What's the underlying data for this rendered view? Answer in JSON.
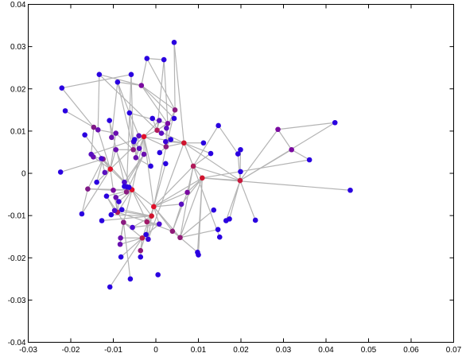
{
  "chart_data": {
    "type": "scatter",
    "title": "",
    "xlabel": "",
    "ylabel": "",
    "xlim": [
      -0.03,
      0.07
    ],
    "ylim": [
      -0.04,
      0.04
    ],
    "xticks": [
      -0.03,
      -0.02,
      -0.01,
      0,
      0.01,
      0.02,
      0.03,
      0.04,
      0.05,
      0.06,
      0.07
    ],
    "yticks": [
      -0.04,
      -0.03,
      -0.02,
      -0.01,
      0,
      0.01,
      0.02,
      0.03,
      0.04
    ],
    "xtick_labels": [
      "-0.03",
      "-0.02",
      "-0.01",
      "0",
      "0.01",
      "0.02",
      "0.03",
      "0.04",
      "0.05",
      "0.06",
      "0.07"
    ],
    "ytick_labels": [
      "-0.04",
      "-0.03",
      "-0.02",
      "-0.01",
      "0",
      "0.01",
      "0.02",
      "0.03",
      "0.04"
    ],
    "grid": false,
    "edge_color": "#b4b4b4",
    "node_colors": {
      "low": "#2a00e0",
      "mid": "#7a0aa0",
      "high": "#e0102a"
    },
    "nodes": [
      {
        "x": -0.0005,
        "y": -0.0079,
        "c": "#e0102a"
      },
      {
        "x": -0.0056,
        "y": -0.0039,
        "c": "#e0102a"
      },
      {
        "x": -0.0107,
        "y": 0.001,
        "c": "#e0102a"
      },
      {
        "x": -0.0028,
        "y": 0.0087,
        "c": "#e0102a"
      },
      {
        "x": 0.0066,
        "y": 0.0072,
        "c": "#d0142e"
      },
      {
        "x": 0.0109,
        "y": -0.0011,
        "c": "#d0142e"
      },
      {
        "x": 0.0198,
        "y": -0.0017,
        "c": "#c8183c"
      },
      {
        "x": -0.001,
        "y": -0.0101,
        "c": "#d0142e"
      },
      {
        "x": -0.0032,
        "y": -0.0153,
        "c": "#b81c50"
      },
      {
        "x": 0.0088,
        "y": 0.0017,
        "c": "#b01a5a"
      },
      {
        "x": 0.0003,
        "y": 0.0102,
        "c": "#b01a5a"
      },
      {
        "x": -0.009,
        "y": -0.0092,
        "c": "#b01a5a"
      },
      {
        "x": -0.0021,
        "y": -0.0115,
        "c": "#a01a68"
      },
      {
        "x": 0.0057,
        "y": -0.0152,
        "c": "#901a78"
      },
      {
        "x": 0.0039,
        "y": -0.0137,
        "c": "#901a78"
      },
      {
        "x": -0.0036,
        "y": -0.0183,
        "c": "#901a78"
      },
      {
        "x": -0.0076,
        "y": -0.0116,
        "c": "#8a1a80"
      },
      {
        "x": -0.0069,
        "y": -0.0044,
        "c": "#8a1a80"
      },
      {
        "x": -0.0053,
        "y": 0.0056,
        "c": "#8a1a80"
      },
      {
        "x": 0.0024,
        "y": 0.0063,
        "c": "#8a1a80"
      },
      {
        "x": 0.0045,
        "y": 0.015,
        "c": "#8a1a80"
      },
      {
        "x": -0.0146,
        "y": 0.0109,
        "c": "#801a88"
      },
      {
        "x": -0.0124,
        "y": 0.0034,
        "c": "#801a88"
      },
      {
        "x": -0.016,
        "y": -0.0037,
        "c": "#801a88"
      },
      {
        "x": -0.01,
        "y": -0.004,
        "c": "#7a0aa0"
      },
      {
        "x": 0.0028,
        "y": 0.0118,
        "c": "#7a0aa0"
      },
      {
        "x": -0.0034,
        "y": 0.0208,
        "c": "#7a0aa0"
      },
      {
        "x": 0.0287,
        "y": 0.0104,
        "c": "#7a0aa0"
      },
      {
        "x": 0.0319,
        "y": 0.0056,
        "c": "#7a0aa0"
      },
      {
        "x": 0.0074,
        "y": -0.0045,
        "c": "#7a0aa0"
      },
      {
        "x": -0.0136,
        "y": 0.0103,
        "c": "#6a10b0"
      },
      {
        "x": -0.0147,
        "y": 0.0039,
        "c": "#6a10b0"
      },
      {
        "x": -0.0094,
        "y": 0.0095,
        "c": "#6a10b0"
      },
      {
        "x": -0.0094,
        "y": 0.0056,
        "c": "#6a10b0"
      },
      {
        "x": -0.0104,
        "y": 0.0085,
        "c": "#6a10b0"
      },
      {
        "x": -0.0047,
        "y": 0.0037,
        "c": "#6a10b0"
      },
      {
        "x": -0.0028,
        "y": 0.0045,
        "c": "#6a10b0"
      },
      {
        "x": -0.0094,
        "y": -0.0057,
        "c": "#6a10b0"
      },
      {
        "x": -0.0083,
        "y": -0.0153,
        "c": "#6a10b0"
      },
      {
        "x": -0.0084,
        "y": -0.0168,
        "c": "#6a10b0"
      },
      {
        "x": 0.0008,
        "y": 0.0125,
        "c": "#5a10c0"
      },
      {
        "x": 0.0025,
        "y": 0.0107,
        "c": "#5a10c0"
      },
      {
        "x": -0.0152,
        "y": 0.0045,
        "c": "#5a10c0"
      },
      {
        "x": 0.0013,
        "y": 0.0095,
        "c": "#5a10c0"
      },
      {
        "x": -0.012,
        "y": 0.0002,
        "c": "#5a10c0"
      },
      {
        "x": -0.0039,
        "y": 0.0059,
        "c": "#5a10c0"
      },
      {
        "x": 0.006,
        "y": -0.0073,
        "c": "#5a10c0"
      },
      {
        "x": -0.004,
        "y": 0.0089,
        "c": "#5a10c0"
      },
      {
        "x": -0.0074,
        "y": -0.0021,
        "c": "#4a08d0"
      },
      {
        "x": -0.0128,
        "y": 0.0035,
        "c": "#4a08d0"
      },
      {
        "x": -0.0055,
        "y": -0.0128,
        "c": "#4a08d0"
      },
      {
        "x": 0.0008,
        "y": -0.012,
        "c": "#4a08d0"
      },
      {
        "x": -0.0097,
        "y": -0.0088,
        "c": "#4a08d0"
      },
      {
        "x": -0.0018,
        "y": -0.0156,
        "c": "#3a04d8"
      },
      {
        "x": 0.0023,
        "y": 0.0075,
        "c": "#3a04d8"
      },
      {
        "x": -0.0052,
        "y": 0.0075,
        "c": "#3a04d8"
      },
      {
        "x": -0.0087,
        "y": -0.0067,
        "c": "#3a04d8"
      },
      {
        "x": -0.0074,
        "y": -0.0031,
        "c": "#2a00e0"
      },
      {
        "x": 0.0043,
        "y": 0.031,
        "c": "#2a00e0"
      },
      {
        "x": -0.0021,
        "y": 0.0272,
        "c": "#2a00e0"
      },
      {
        "x": 0.0019,
        "y": 0.0269,
        "c": "#2a00e0"
      },
      {
        "x": -0.0133,
        "y": 0.0234,
        "c": "#2a00e0"
      },
      {
        "x": -0.009,
        "y": 0.0216,
        "c": "#2a00e0"
      },
      {
        "x": -0.0058,
        "y": 0.0234,
        "c": "#2a00e0"
      },
      {
        "x": -0.0221,
        "y": 0.0202,
        "c": "#2a00e0"
      },
      {
        "x": -0.0213,
        "y": 0.0148,
        "c": "#2a00e0"
      },
      {
        "x": -0.0109,
        "y": 0.0125,
        "c": "#2a00e0"
      },
      {
        "x": -0.0062,
        "y": 0.0143,
        "c": "#2a00e0"
      },
      {
        "x": 0.0043,
        "y": 0.013,
        "c": "#2a00e0"
      },
      {
        "x": -0.0008,
        "y": 0.013,
        "c": "#2a00e0"
      },
      {
        "x": 0.0147,
        "y": 0.0113,
        "c": "#2a00e0"
      },
      {
        "x": 0.0421,
        "y": 0.012,
        "c": "#2a00e0"
      },
      {
        "x": 0.0199,
        "y": 0.0056,
        "c": "#2a00e0"
      },
      {
        "x": 0.0193,
        "y": 0.0046,
        "c": "#2a00e0"
      },
      {
        "x": 0.0112,
        "y": 0.0072,
        "c": "#2a00e0"
      },
      {
        "x": 0.0129,
        "y": 0.0047,
        "c": "#2a00e0"
      },
      {
        "x": 0.0361,
        "y": 0.0032,
        "c": "#2a00e0"
      },
      {
        "x": 0.0199,
        "y": 0.0004,
        "c": "#2a00e0"
      },
      {
        "x": 0.0457,
        "y": -0.004,
        "c": "#2a00e0"
      },
      {
        "x": -0.0224,
        "y": 0.0003,
        "c": "#2a00e0"
      },
      {
        "x": -0.0167,
        "y": 0.0091,
        "c": "#2a00e0"
      },
      {
        "x": -0.0139,
        "y": -0.0021,
        "c": "#2a00e0"
      },
      {
        "x": -0.0174,
        "y": -0.0096,
        "c": "#2a00e0"
      },
      {
        "x": -0.0127,
        "y": -0.0112,
        "c": "#2a00e0"
      },
      {
        "x": -0.0105,
        "y": -0.0098,
        "c": "#2a00e0"
      },
      {
        "x": -0.008,
        "y": -0.0086,
        "c": "#2a00e0"
      },
      {
        "x": -0.0116,
        "y": -0.0054,
        "c": "#2a00e0"
      },
      {
        "x": 0.0035,
        "y": 0.008,
        "c": "#2a00e0"
      },
      {
        "x": 0.0009,
        "y": 0.0049,
        "c": "#2a00e0"
      },
      {
        "x": -0.0012,
        "y": 0.0017,
        "c": "#2a00e0"
      },
      {
        "x": 0.0023,
        "y": 0.0023,
        "c": "#2a00e0"
      },
      {
        "x": 0.0165,
        "y": -0.0112,
        "c": "#2a00e0"
      },
      {
        "x": 0.0173,
        "y": -0.0108,
        "c": "#2a00e0"
      },
      {
        "x": 0.0234,
        "y": -0.0111,
        "c": "#2a00e0"
      },
      {
        "x": 0.0136,
        "y": -0.0087,
        "c": "#2a00e0"
      },
      {
        "x": 0.0146,
        "y": -0.0133,
        "c": "#2a00e0"
      },
      {
        "x": 0.015,
        "y": -0.0151,
        "c": "#2a00e0"
      },
      {
        "x": 0.0098,
        "y": -0.0187,
        "c": "#2a00e0"
      },
      {
        "x": 0.01,
        "y": -0.0193,
        "c": "#2a00e0"
      },
      {
        "x": -0.0082,
        "y": -0.0198,
        "c": "#2a00e0"
      },
      {
        "x": -0.006,
        "y": -0.025,
        "c": "#2a00e0"
      },
      {
        "x": -0.0036,
        "y": -0.0198,
        "c": "#2a00e0"
      },
      {
        "x": -0.0108,
        "y": -0.0269,
        "c": "#2a00e0"
      },
      {
        "x": 0.0005,
        "y": -0.024,
        "c": "#2a00e0"
      },
      {
        "x": -0.0023,
        "y": -0.0145,
        "c": "#2a00e0"
      },
      {
        "x": -0.0068,
        "y": -0.0032,
        "c": "#2a00e0"
      },
      {
        "x": -0.0063,
        "y": -0.0033,
        "c": "#2a00e0"
      },
      {
        "x": -0.005,
        "y": 0.008,
        "c": "#2a00e0"
      }
    ],
    "edges": [
      [
        3,
        0
      ],
      [
        3,
        1
      ],
      [
        3,
        2
      ],
      [
        3,
        10
      ],
      [
        3,
        4
      ],
      [
        3,
        19
      ],
      [
        3,
        35
      ],
      [
        3,
        36
      ],
      [
        3,
        45
      ],
      [
        3,
        47
      ],
      [
        3,
        40
      ],
      [
        3,
        42
      ],
      [
        3,
        89
      ],
      [
        1,
        2
      ],
      [
        1,
        0
      ],
      [
        1,
        7
      ],
      [
        1,
        11
      ],
      [
        1,
        12
      ],
      [
        1,
        16
      ],
      [
        1,
        17
      ],
      [
        1,
        24
      ],
      [
        1,
        37
      ],
      [
        1,
        48
      ],
      [
        1,
        56
      ],
      [
        1,
        57
      ],
      [
        1,
        105
      ],
      [
        1,
        106
      ],
      [
        1,
        33
      ],
      [
        1,
        23
      ],
      [
        1,
        86
      ],
      [
        1,
        22
      ],
      [
        0,
        7
      ],
      [
        0,
        5
      ],
      [
        0,
        9
      ],
      [
        0,
        8
      ],
      [
        0,
        13
      ],
      [
        0,
        14
      ],
      [
        0,
        46
      ],
      [
        0,
        29
      ],
      [
        0,
        51
      ],
      [
        0,
        19
      ],
      [
        0,
        90
      ],
      [
        2,
        22
      ],
      [
        2,
        31
      ],
      [
        2,
        44
      ],
      [
        2,
        49
      ],
      [
        2,
        30
      ],
      [
        2,
        32
      ],
      [
        2,
        33
      ],
      [
        2,
        80
      ],
      [
        2,
        81
      ],
      [
        2,
        82
      ],
      [
        2,
        24
      ],
      [
        4,
        9
      ],
      [
        4,
        6
      ],
      [
        4,
        19
      ],
      [
        4,
        53
      ],
      [
        4,
        74
      ],
      [
        4,
        75
      ],
      [
        4,
        10
      ],
      [
        4,
        54
      ],
      [
        4,
        58
      ],
      [
        5,
        6
      ],
      [
        5,
        9
      ],
      [
        5,
        29
      ],
      [
        5,
        76
      ],
      [
        5,
        78
      ],
      [
        5,
        13
      ],
      [
        5,
        97
      ],
      [
        5,
        98
      ],
      [
        5,
        46
      ],
      [
        6,
        72
      ],
      [
        6,
        73
      ],
      [
        6,
        27
      ],
      [
        6,
        28
      ],
      [
        6,
        71
      ],
      [
        6,
        77
      ],
      [
        6,
        91
      ],
      [
        6,
        92
      ],
      [
        6,
        93
      ],
      [
        6,
        9
      ],
      [
        7,
        15
      ],
      [
        7,
        50
      ],
      [
        7,
        52
      ],
      [
        7,
        83
      ],
      [
        7,
        84
      ],
      [
        7,
        85
      ],
      [
        7,
        53
      ],
      [
        7,
        12
      ],
      [
        8,
        15
      ],
      [
        8,
        16
      ],
      [
        8,
        38
      ],
      [
        8,
        39
      ],
      [
        8,
        51
      ],
      [
        8,
        99
      ],
      [
        8,
        101
      ],
      [
        8,
        102
      ],
      [
        8,
        104
      ],
      [
        8,
        53
      ],
      [
        9,
        29
      ],
      [
        9,
        70
      ],
      [
        9,
        75
      ],
      [
        9,
        96
      ],
      [
        9,
        13
      ],
      [
        10,
        40
      ],
      [
        10,
        43
      ],
      [
        10,
        25
      ],
      [
        10,
        60
      ],
      [
        10,
        61
      ],
      [
        10,
        68
      ],
      [
        10,
        69
      ],
      [
        11,
        12
      ],
      [
        11,
        16
      ],
      [
        11,
        52
      ],
      [
        11,
        24
      ],
      [
        11,
        56
      ],
      [
        11,
        86
      ],
      [
        11,
        37
      ],
      [
        12,
        14
      ],
      [
        12,
        51
      ],
      [
        12,
        53
      ],
      [
        13,
        95
      ],
      [
        13,
        94
      ],
      [
        13,
        97
      ],
      [
        13,
        14
      ],
      [
        14,
        46
      ],
      [
        14,
        29
      ],
      [
        16,
        38
      ],
      [
        16,
        50
      ],
      [
        16,
        100
      ],
      [
        16,
        39
      ],
      [
        17,
        48
      ],
      [
        17,
        105
      ],
      [
        17,
        36
      ],
      [
        17,
        66
      ],
      [
        17,
        63
      ],
      [
        18,
        33
      ],
      [
        18,
        32
      ],
      [
        18,
        107
      ],
      [
        18,
        67
      ],
      [
        18,
        62
      ],
      [
        18,
        63
      ],
      [
        19,
        20
      ],
      [
        19,
        25
      ],
      [
        19,
        41
      ],
      [
        19,
        54
      ],
      [
        19,
        87
      ],
      [
        19,
        88
      ],
      [
        20,
        58
      ],
      [
        20,
        59
      ],
      [
        20,
        26
      ],
      [
        21,
        30
      ],
      [
        21,
        42
      ],
      [
        21,
        65
      ],
      [
        21,
        64
      ],
      [
        22,
        23
      ],
      [
        22,
        31
      ],
      [
        22,
        79
      ],
      [
        22,
        81
      ],
      [
        23,
        82
      ],
      [
        23,
        24
      ],
      [
        25,
        26
      ],
      [
        25,
        67
      ],
      [
        25,
        60
      ],
      [
        26,
        59
      ],
      [
        26,
        62
      ],
      [
        26,
        61
      ],
      [
        26,
        68
      ],
      [
        27,
        28
      ],
      [
        27,
        71
      ],
      [
        28,
        76
      ],
      [
        30,
        61
      ],
      [
        30,
        32
      ],
      [
        34,
        32
      ],
      [
        34,
        66
      ],
      [
        34,
        62
      ],
      [
        35,
        45
      ],
      [
        35,
        47
      ],
      [
        35,
        107
      ],
      [
        35,
        89
      ],
      [
        36,
        57
      ],
      [
        36,
        48
      ],
      [
        37,
        56
      ],
      [
        41,
        20
      ],
      [
        44,
        49
      ],
      [
        47,
        55
      ],
      [
        47,
        67
      ],
      [
        50,
        51
      ],
      [
        52,
        86
      ],
      [
        54,
        87
      ],
      [
        55,
        36
      ],
      [
        60,
        59
      ],
      [
        63,
        64
      ],
      [
        67,
        62
      ],
      [
        73,
        70
      ]
    ]
  }
}
